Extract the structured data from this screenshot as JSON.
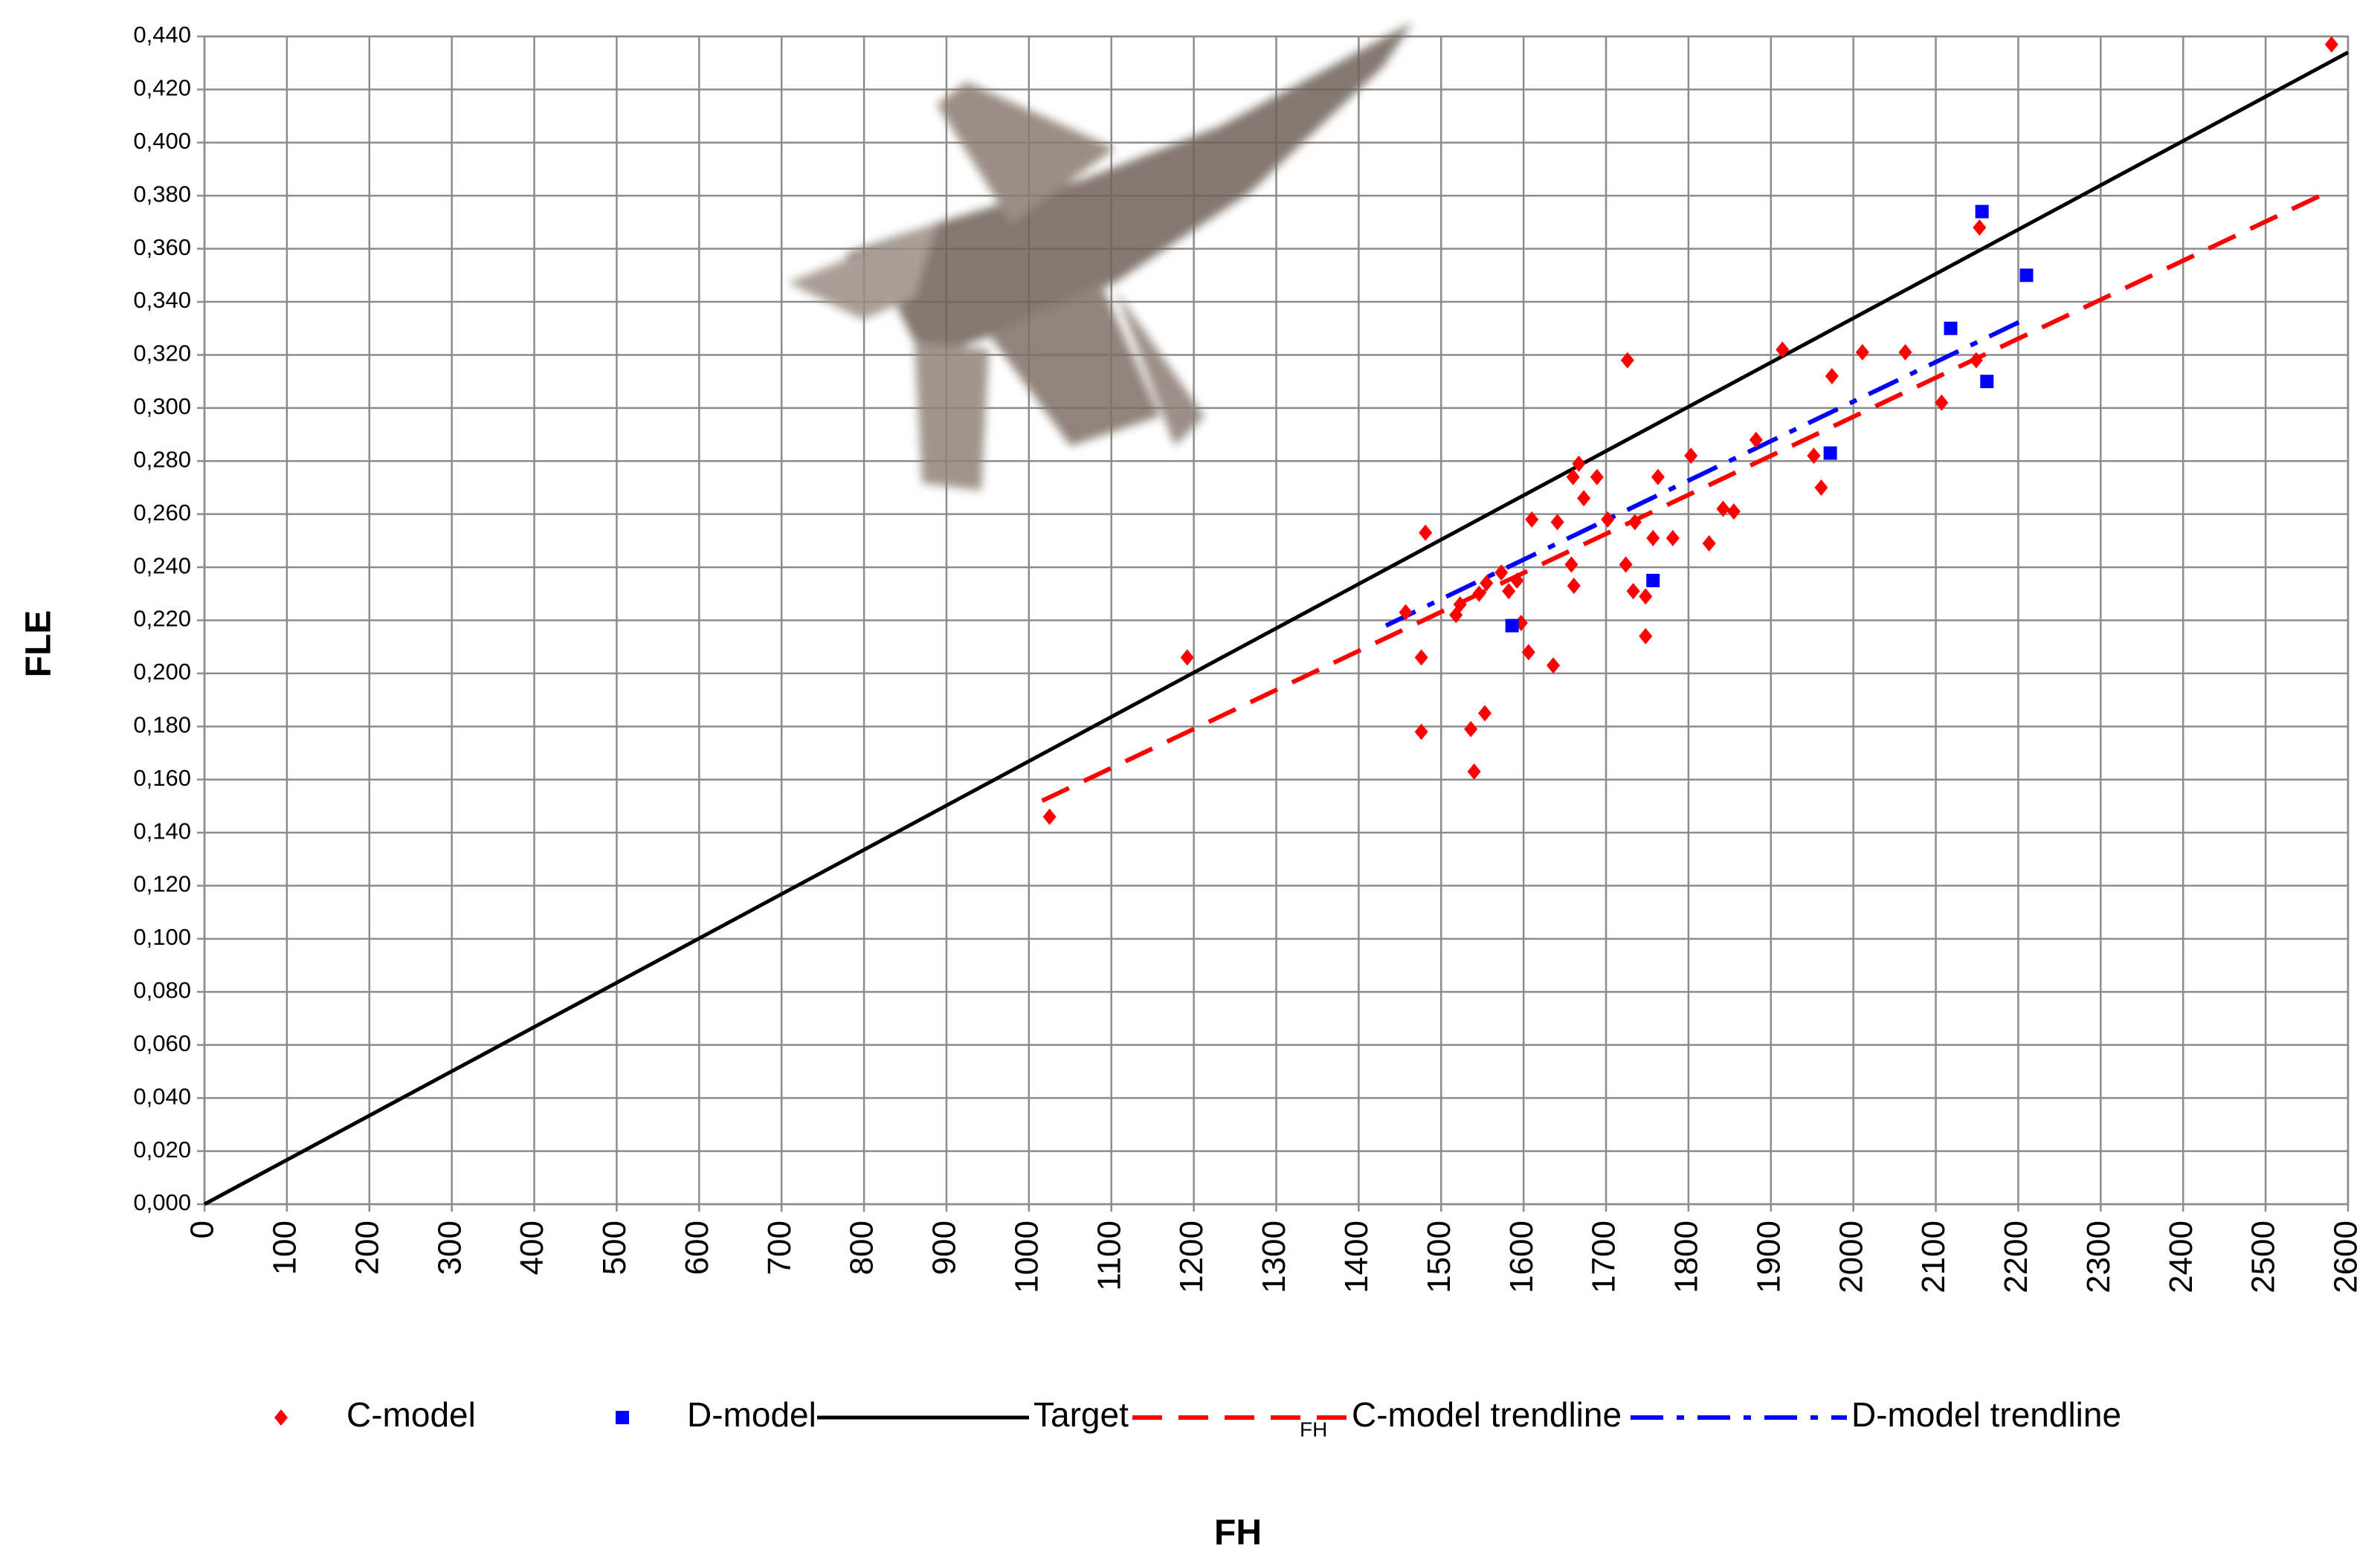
{
  "chart_data": {
    "type": "scatter",
    "x_label": "FH",
    "y_label": "FLE",
    "xlim": [
      0,
      2600
    ],
    "xticks": [
      0,
      100,
      200,
      300,
      400,
      500,
      600,
      700,
      800,
      900,
      1000,
      1100,
      1200,
      1300,
      1400,
      1500,
      1600,
      1700,
      1800,
      1900,
      2000,
      2100,
      2200,
      2300,
      2400,
      2500,
      2600
    ],
    "ylim": [
      0,
      0.44
    ],
    "yticks": [
      {
        "value": 0,
        "label": "0,000"
      },
      {
        "value": 0.02,
        "label": "0,020"
      },
      {
        "value": 0.04,
        "label": "0,040"
      },
      {
        "value": 0.06,
        "label": "0,060"
      },
      {
        "value": 0.08,
        "label": "0,080"
      },
      {
        "value": 0.1,
        "label": "0,100"
      },
      {
        "value": 0.12,
        "label": "0,120"
      },
      {
        "value": 0.14,
        "label": "0,140"
      },
      {
        "value": 0.16,
        "label": "0,160"
      },
      {
        "value": 0.18,
        "label": "0,180"
      },
      {
        "value": 0.2,
        "label": "0,200"
      },
      {
        "value": 0.22,
        "label": "0,220"
      },
      {
        "value": 0.24,
        "label": "0,240"
      },
      {
        "value": 0.26,
        "label": "0,260"
      },
      {
        "value": 0.28,
        "label": "0,280"
      },
      {
        "value": 0.3,
        "label": "0,300"
      },
      {
        "value": 0.32,
        "label": "0,320"
      },
      {
        "value": 0.34,
        "label": "0,340"
      },
      {
        "value": 0.36,
        "label": "0,360"
      },
      {
        "value": 0.38,
        "label": "0,380"
      },
      {
        "value": 0.4,
        "label": "0,400"
      },
      {
        "value": 0.42,
        "label": "0,420"
      },
      {
        "value": 0.44,
        "label": "0,440"
      }
    ],
    "grid": true,
    "legend_position": "bottom",
    "legend_note": "FH",
    "series": [
      {
        "name": "C-model",
        "color": "#ff0000",
        "marker": "diamond",
        "x": [
          1025,
          1192,
          1481,
          1476,
          1476,
          1457,
          1518,
          1523,
          1536,
          1540,
          1553,
          1546,
          1555,
          1573,
          1582,
          1592,
          1597,
          1606,
          1610,
          1636,
          1641,
          1658,
          1661,
          1660,
          1667,
          1673,
          1689,
          1702,
          1724,
          1733,
          1726,
          1735,
          1748,
          1748,
          1757,
          1763,
          1781,
          1803,
          1825,
          1842,
          1855,
          1882,
          1914,
          1952,
          1961,
          1974,
          2011,
          2063,
          2107,
          2153,
          2149,
          2580
        ],
        "values": [
          0.146,
          0.206,
          0.253,
          0.206,
          0.178,
          0.223,
          0.222,
          0.226,
          0.179,
          0.163,
          0.185,
          0.23,
          0.234,
          0.238,
          0.231,
          0.235,
          0.219,
          0.208,
          0.258,
          0.203,
          0.257,
          0.241,
          0.233,
          0.274,
          0.279,
          0.266,
          0.274,
          0.258,
          0.241,
          0.231,
          0.318,
          0.257,
          0.229,
          0.214,
          0.251,
          0.274,
          0.251,
          0.282,
          0.249,
          0.262,
          0.261,
          0.288,
          0.322,
          0.282,
          0.27,
          0.312,
          0.321,
          0.321,
          0.302,
          0.368,
          0.318,
          0.437
        ]
      },
      {
        "name": "D-model",
        "color": "#0000ff",
        "marker": "square",
        "x": [
          1586,
          1757,
          1972,
          2118,
          2156,
          2162,
          2210
        ],
        "values": [
          0.218,
          0.235,
          0.283,
          0.33,
          0.374,
          0.31,
          0.35
        ]
      },
      {
        "name": "Target",
        "color": "#000000",
        "line": "solid",
        "x": [
          0,
          2600
        ],
        "values": [
          0,
          0.434
        ]
      },
      {
        "name": "C-model trendline",
        "color": "#ff0000",
        "line": "dashed",
        "x": [
          1016,
          2580
        ],
        "values": [
          0.152,
          0.382
        ]
      },
      {
        "name": "D-model trendline",
        "color": "#0000ff",
        "line": "dashdot",
        "x": [
          1433,
          2212
        ],
        "values": [
          0.218,
          0.334
        ]
      }
    ]
  }
}
